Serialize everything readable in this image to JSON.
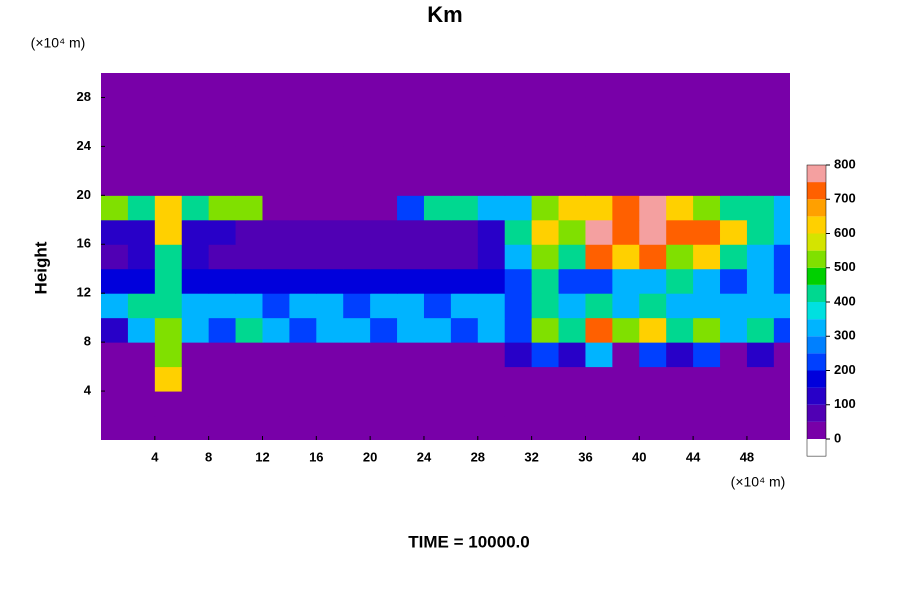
{
  "chart_data": {
    "type": "heatmap",
    "title": "Km",
    "ylabel": "Height",
    "y_unit": "(×10⁴ m)",
    "x_unit": "(×10⁴ m)",
    "footer": "TIME = 10000.0",
    "xlim": [
      0,
      51.2
    ],
    "ylim": [
      0,
      30
    ],
    "xticks": [
      4,
      8,
      12,
      16,
      20,
      24,
      28,
      32,
      36,
      40,
      44,
      48
    ],
    "yticks": [
      4,
      8,
      12,
      16,
      20,
      24,
      28
    ],
    "clim": [
      0,
      800
    ],
    "cticks": [
      0,
      100,
      200,
      300,
      400,
      500,
      600,
      700,
      800
    ],
    "colors": [
      "#7800a8",
      "#5000b4",
      "#2800c8",
      "#0000dc",
      "#0040ff",
      "#0080ff",
      "#00b4ff",
      "#00e0e0",
      "#00d890",
      "#00d000",
      "#80e000",
      "#d4e400",
      "#ffd000",
      "#ffa000",
      "#ff6000",
      "#ff0000",
      "#f4a0a0"
    ],
    "x_bins": [
      0,
      2,
      4,
      6,
      8,
      10,
      12,
      14,
      16,
      18,
      20,
      22,
      24,
      26,
      28,
      30,
      32,
      34,
      36,
      38,
      40,
      42,
      44,
      46,
      48,
      50,
      52
    ],
    "y_bins": [
      0,
      2,
      4,
      6,
      8,
      10,
      12,
      14,
      16,
      18,
      20,
      22,
      24,
      26,
      28,
      30
    ],
    "z": [
      [
        0,
        0,
        0,
        0,
        0,
        0,
        0,
        0,
        0,
        0,
        0,
        0,
        0,
        0,
        0,
        0,
        0,
        0,
        0,
        0,
        0,
        0,
        0,
        0,
        0,
        0
      ],
      [
        0,
        0,
        0,
        0,
        0,
        0,
        0,
        0,
        0,
        0,
        0,
        0,
        0,
        0,
        0,
        0,
        0,
        0,
        0,
        0,
        0,
        0,
        0,
        0,
        0,
        0
      ],
      [
        0,
        0,
        600,
        0,
        0,
        0,
        0,
        0,
        0,
        0,
        0,
        0,
        0,
        0,
        0,
        0,
        0,
        0,
        0,
        0,
        0,
        0,
        0,
        0,
        0,
        0
      ],
      [
        0,
        0,
        500,
        0,
        0,
        0,
        0,
        0,
        0,
        0,
        0,
        0,
        0,
        0,
        0,
        100,
        200,
        100,
        300,
        0,
        200,
        100,
        200,
        0,
        100,
        0
      ],
      [
        100,
        300,
        500,
        300,
        200,
        400,
        300,
        200,
        300,
        300,
        200,
        300,
        300,
        200,
        300,
        200,
        500,
        400,
        700,
        500,
        600,
        400,
        500,
        300,
        400,
        200
      ],
      [
        300,
        400,
        400,
        300,
        300,
        300,
        200,
        300,
        300,
        200,
        300,
        300,
        200,
        300,
        300,
        200,
        400,
        300,
        400,
        300,
        400,
        300,
        300,
        300,
        300,
        300
      ],
      [
        150,
        150,
        400,
        150,
        150,
        150,
        150,
        150,
        150,
        150,
        150,
        150,
        150,
        150,
        150,
        200,
        400,
        200,
        200,
        300,
        300,
        400,
        300,
        200,
        300,
        200
      ],
      [
        50,
        100,
        400,
        100,
        50,
        50,
        50,
        50,
        50,
        50,
        50,
        50,
        50,
        50,
        100,
        300,
        500,
        400,
        700,
        600,
        700,
        500,
        600,
        400,
        300,
        200
      ],
      [
        100,
        100,
        600,
        100,
        100,
        50,
        50,
        50,
        50,
        50,
        50,
        50,
        50,
        50,
        100,
        400,
        600,
        500,
        800,
        700,
        800,
        700,
        700,
        600,
        400,
        300
      ],
      [
        500,
        400,
        600,
        400,
        500,
        500,
        0,
        0,
        0,
        0,
        0,
        200,
        400,
        400,
        300,
        300,
        500,
        600,
        600,
        700,
        800,
        600,
        500,
        400,
        400,
        300
      ],
      [
        0,
        0,
        0,
        0,
        0,
        0,
        0,
        0,
        0,
        0,
        0,
        0,
        0,
        0,
        0,
        0,
        0,
        0,
        0,
        0,
        0,
        0,
        0,
        0,
        0,
        0
      ],
      [
        0,
        0,
        0,
        0,
        0,
        0,
        0,
        0,
        0,
        0,
        0,
        0,
        0,
        0,
        0,
        0,
        0,
        0,
        0,
        0,
        0,
        0,
        0,
        0,
        0,
        0
      ],
      [
        0,
        0,
        0,
        0,
        0,
        0,
        0,
        0,
        0,
        0,
        0,
        0,
        0,
        0,
        0,
        0,
        0,
        0,
        0,
        0,
        0,
        0,
        0,
        0,
        0,
        0
      ],
      [
        0,
        0,
        0,
        0,
        0,
        0,
        0,
        0,
        0,
        0,
        0,
        0,
        0,
        0,
        0,
        0,
        0,
        0,
        0,
        0,
        0,
        0,
        0,
        0,
        0,
        0
      ],
      [
        0,
        0,
        0,
        0,
        0,
        0,
        0,
        0,
        0,
        0,
        0,
        0,
        0,
        0,
        0,
        0,
        0,
        0,
        0,
        0,
        0,
        0,
        0,
        0,
        0,
        0
      ]
    ]
  }
}
